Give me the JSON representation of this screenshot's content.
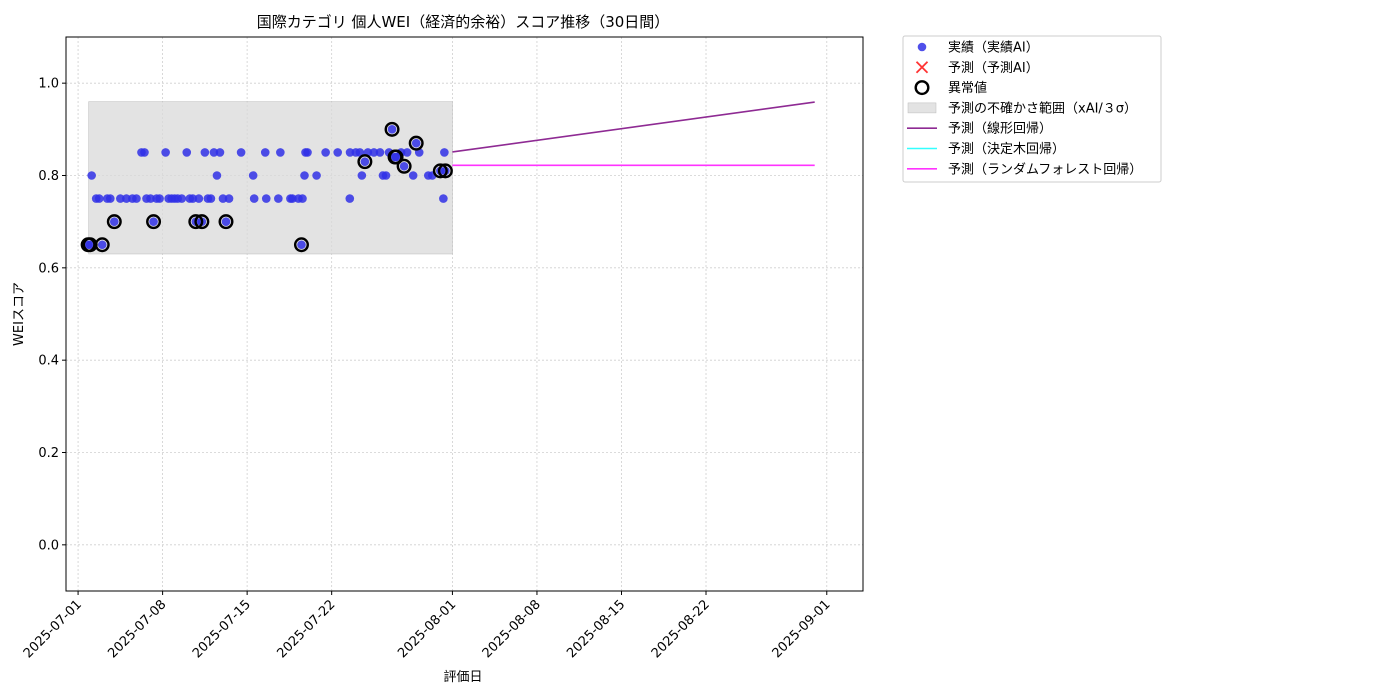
{
  "chart_data": {
    "type": "scatter",
    "title": "国際カテゴリ 個人WEI（経済的余裕）スコア推移（30日間）",
    "xlabel": "評価日",
    "ylabel": "WEIスコア",
    "xlim": [
      "2025-06-30T00:00",
      "2025-09-04T00:00"
    ],
    "ylim": [
      -0.1,
      1.1
    ],
    "y_ticks": [
      0.0,
      0.2,
      0.4,
      0.6,
      0.8,
      1.0
    ],
    "x_ticks": [
      "2025-07-01",
      "2025-07-08",
      "2025-07-15",
      "2025-07-22",
      "2025-08-01",
      "2025-08-08",
      "2025-08-15",
      "2025-08-22",
      "2025-09-01"
    ],
    "grid": true,
    "legend_position": "outside-top-right",
    "colors": {
      "actual": "#3030e6",
      "forecast_marker": "#ff3333",
      "anomaly": "#000000",
      "band": "#d9d9d9",
      "linear": "#8e2a93",
      "tree": "#33ffff",
      "forest": "#ff33ff"
    },
    "legend": [
      {
        "label": "実績（実績AI）",
        "kind": "dot",
        "color_key": "actual"
      },
      {
        "label": "予測（予測AI）",
        "kind": "x",
        "color_key": "forecast_marker"
      },
      {
        "label": "異常値",
        "kind": "ring",
        "color_key": "anomaly"
      },
      {
        "label": "予測の不確かさ範囲（xAI/３σ）",
        "kind": "patch",
        "color_key": "band"
      },
      {
        "label": "予測（線形回帰）",
        "kind": "line",
        "color_key": "linear"
      },
      {
        "label": "予測（決定木回帰）",
        "kind": "line",
        "color_key": "tree"
      },
      {
        "label": "予測（ランダムフォレスト回帰）",
        "kind": "line",
        "color_key": "forest"
      }
    ],
    "band": {
      "x": [
        "2025-07-01T21:00",
        "2025-08-01T00:00"
      ],
      "y": [
        0.63,
        0.96
      ]
    },
    "actual": [
      [
        "2025-07-01T20:00",
        0.65
      ],
      [
        "2025-07-02T00:00",
        0.65
      ],
      [
        "2025-07-02T03:00",
        0.8
      ],
      [
        "2025-07-02T12:00",
        0.75
      ],
      [
        "2025-07-02T18:00",
        0.75
      ],
      [
        "2025-07-03T00:00",
        0.65
      ],
      [
        "2025-07-03T10:00",
        0.75
      ],
      [
        "2025-07-03T16:00",
        0.75
      ],
      [
        "2025-07-04T00:00",
        0.7
      ],
      [
        "2025-07-04T12:00",
        0.75
      ],
      [
        "2025-07-05T00:00",
        0.75
      ],
      [
        "2025-07-05T12:00",
        0.75
      ],
      [
        "2025-07-05T20:00",
        0.75
      ],
      [
        "2025-07-06T06:00",
        0.85
      ],
      [
        "2025-07-06T12:00",
        0.85
      ],
      [
        "2025-07-06T16:00",
        0.75
      ],
      [
        "2025-07-07T00:00",
        0.75
      ],
      [
        "2025-07-07T06:00",
        0.7
      ],
      [
        "2025-07-07T12:00",
        0.75
      ],
      [
        "2025-07-07T18:00",
        0.75
      ],
      [
        "2025-07-08T06:00",
        0.85
      ],
      [
        "2025-07-08T12:00",
        0.75
      ],
      [
        "2025-07-08T18:00",
        0.75
      ],
      [
        "2025-07-09T00:00",
        0.75
      ],
      [
        "2025-07-09T06:00",
        0.75
      ],
      [
        "2025-07-09T14:00",
        0.75
      ],
      [
        "2025-07-10T00:00",
        0.85
      ],
      [
        "2025-07-10T06:00",
        0.75
      ],
      [
        "2025-07-10T12:00",
        0.75
      ],
      [
        "2025-07-10T18:00",
        0.7
      ],
      [
        "2025-07-11T00:00",
        0.75
      ],
      [
        "2025-07-11T06:00",
        0.7
      ],
      [
        "2025-07-11T12:00",
        0.85
      ],
      [
        "2025-07-11T18:00",
        0.75
      ],
      [
        "2025-07-12T00:00",
        0.75
      ],
      [
        "2025-07-12T06:00",
        0.85
      ],
      [
        "2025-07-12T12:00",
        0.8
      ],
      [
        "2025-07-12T18:00",
        0.85
      ],
      [
        "2025-07-13T00:00",
        0.75
      ],
      [
        "2025-07-13T06:00",
        0.7
      ],
      [
        "2025-07-13T12:00",
        0.75
      ],
      [
        "2025-07-14T12:00",
        0.85
      ],
      [
        "2025-07-15T12:00",
        0.8
      ],
      [
        "2025-07-15T14:00",
        0.75
      ],
      [
        "2025-07-16T12:00",
        0.85
      ],
      [
        "2025-07-16T14:00",
        0.75
      ],
      [
        "2025-07-17T14:00",
        0.75
      ],
      [
        "2025-07-17T18:00",
        0.85
      ],
      [
        "2025-07-18T14:00",
        0.75
      ],
      [
        "2025-07-18T18:00",
        0.75
      ],
      [
        "2025-07-19T06:00",
        0.75
      ],
      [
        "2025-07-19T12:00",
        0.65
      ],
      [
        "2025-07-19T14:00",
        0.75
      ],
      [
        "2025-07-19T18:00",
        0.8
      ],
      [
        "2025-07-19T20:00",
        0.85
      ],
      [
        "2025-07-20T00:00",
        0.85
      ],
      [
        "2025-07-20T18:00",
        0.8
      ],
      [
        "2025-07-21T12:00",
        0.85
      ],
      [
        "2025-07-22T12:00",
        0.85
      ],
      [
        "2025-07-23T12:00",
        0.75
      ],
      [
        "2025-07-23T12:30",
        0.85
      ],
      [
        "2025-07-24T00:00",
        0.85
      ],
      [
        "2025-07-24T08:00",
        0.85
      ],
      [
        "2025-07-24T12:00",
        0.8
      ],
      [
        "2025-07-24T18:00",
        0.83
      ],
      [
        "2025-07-25T00:00",
        0.85
      ],
      [
        "2025-07-25T12:00",
        0.85
      ],
      [
        "2025-07-26T00:00",
        0.85
      ],
      [
        "2025-07-26T06:00",
        0.8
      ],
      [
        "2025-07-26T12:00",
        0.8
      ],
      [
        "2025-07-26T18:00",
        0.85
      ],
      [
        "2025-07-27T00:00",
        0.9
      ],
      [
        "2025-07-27T06:00",
        0.84
      ],
      [
        "2025-07-27T08:00",
        0.84
      ],
      [
        "2025-07-27T18:00",
        0.85
      ],
      [
        "2025-07-28T00:00",
        0.82
      ],
      [
        "2025-07-28T06:00",
        0.85
      ],
      [
        "2025-07-28T18:00",
        0.8
      ],
      [
        "2025-07-29T00:00",
        0.87
      ],
      [
        "2025-07-29T06:00",
        0.85
      ],
      [
        "2025-07-30T00:00",
        0.8
      ],
      [
        "2025-07-30T08:00",
        0.8
      ],
      [
        "2025-07-31T00:00",
        0.81
      ],
      [
        "2025-07-31T06:00",
        0.75
      ],
      [
        "2025-07-31T08:00",
        0.85
      ],
      [
        "2025-07-31T10:00",
        0.81
      ]
    ],
    "anomalies": [
      [
        "2025-07-01T20:00",
        0.65
      ],
      [
        "2025-07-02T00:00",
        0.65
      ],
      [
        "2025-07-03T00:00",
        0.65
      ],
      [
        "2025-07-04T00:00",
        0.7
      ],
      [
        "2025-07-07T06:00",
        0.7
      ],
      [
        "2025-07-10T18:00",
        0.7
      ],
      [
        "2025-07-11T06:00",
        0.7
      ],
      [
        "2025-07-13T06:00",
        0.7
      ],
      [
        "2025-07-19T12:00",
        0.65
      ],
      [
        "2025-07-24T18:00",
        0.83
      ],
      [
        "2025-07-27T00:00",
        0.9
      ],
      [
        "2025-07-27T06:00",
        0.84
      ],
      [
        "2025-07-27T08:00",
        0.84
      ],
      [
        "2025-07-28T00:00",
        0.82
      ],
      [
        "2025-07-29T00:00",
        0.87
      ],
      [
        "2025-07-31T00:00",
        0.81
      ],
      [
        "2025-07-31T10:00",
        0.81
      ]
    ],
    "forecast_lines": [
      {
        "color_key": "linear",
        "x": [
          "2025-08-01T00:00",
          "2025-08-31T00:00"
        ],
        "y": [
          0.851,
          0.959
        ]
      },
      {
        "color_key": "forest",
        "x": [
          "2025-08-01T00:00",
          "2025-08-31T00:00"
        ],
        "y": [
          0.822,
          0.822
        ]
      }
    ]
  }
}
